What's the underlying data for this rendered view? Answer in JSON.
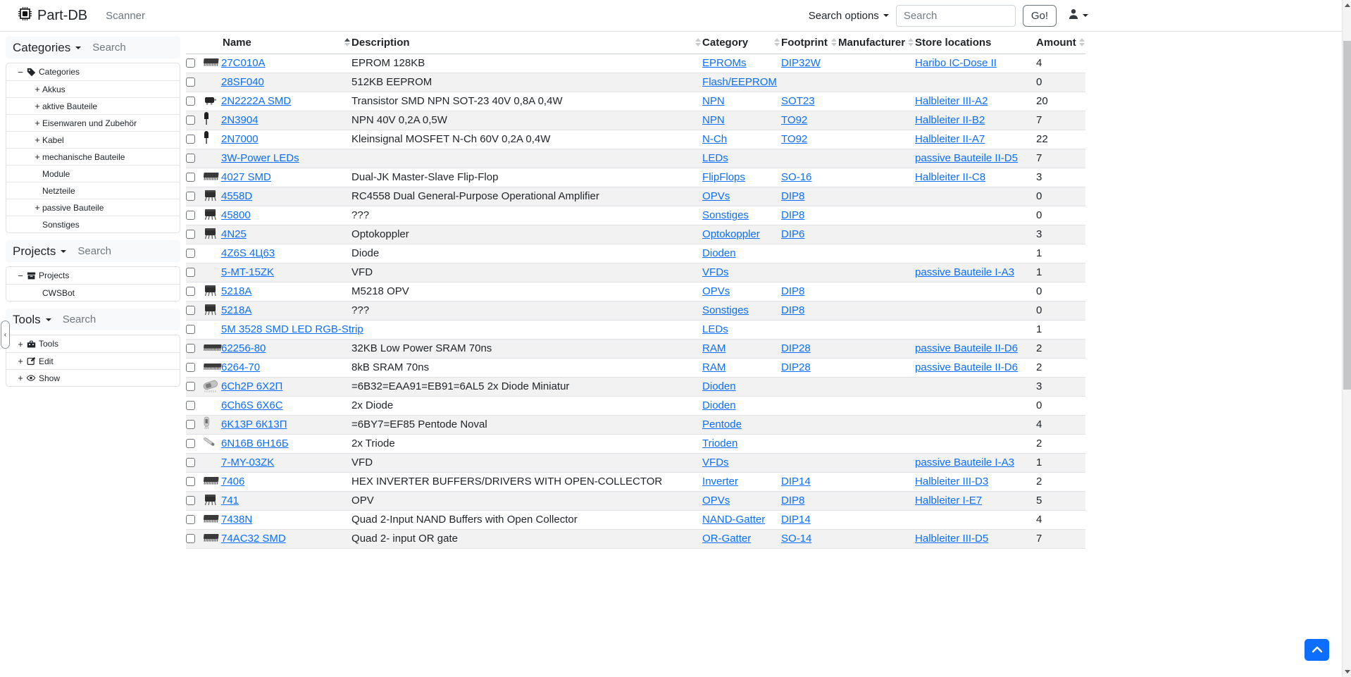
{
  "navbar": {
    "brand": "Part-DB",
    "scanner_label": "Scanner",
    "search_options_label": "Search options",
    "search_placeholder": "Search",
    "go_label": "Go!"
  },
  "sidebar": {
    "sections": [
      {
        "id": "categories",
        "title": "Categories",
        "search_placeholder": "Search",
        "items": [
          {
            "label": "Categories",
            "expander": "−",
            "icon": "tag",
            "level": 0
          },
          {
            "label": "Akkus",
            "expander": "+",
            "icon": "",
            "level": 1
          },
          {
            "label": "aktive Bauteile",
            "expander": "+",
            "icon": "",
            "level": 1
          },
          {
            "label": "Eisenwaren und Zubehör",
            "expander": "+",
            "icon": "",
            "level": 1
          },
          {
            "label": "Kabel",
            "expander": "+",
            "icon": "",
            "level": 1
          },
          {
            "label": "mechanische Bauteile",
            "expander": "+",
            "icon": "",
            "level": 1
          },
          {
            "label": "Module",
            "expander": "",
            "icon": "",
            "level": 1
          },
          {
            "label": "Netzteile",
            "expander": "",
            "icon": "",
            "level": 1
          },
          {
            "label": "passive Bauteile",
            "expander": "+",
            "icon": "",
            "level": 1
          },
          {
            "label": "Sonstiges",
            "expander": "",
            "icon": "",
            "level": 1
          }
        ]
      },
      {
        "id": "projects",
        "title": "Projects",
        "search_placeholder": "Search",
        "items": [
          {
            "label": "Projects",
            "expander": "−",
            "icon": "inbox",
            "level": 0
          },
          {
            "label": "CWSBot",
            "expander": "",
            "icon": "",
            "level": 1
          }
        ]
      },
      {
        "id": "tools",
        "title": "Tools",
        "search_placeholder": "Search",
        "items": [
          {
            "label": "Tools",
            "expander": "+",
            "icon": "toolbox",
            "level": 0
          },
          {
            "label": "Edit",
            "expander": "+",
            "icon": "pencil",
            "level": 0
          },
          {
            "label": "Show",
            "expander": "+",
            "icon": "eye",
            "level": 0
          }
        ]
      }
    ]
  },
  "table": {
    "headers": {
      "name": "Name",
      "description": "Description",
      "category": "Category",
      "footprint": "Footprint",
      "manufacturer": "Manufacturer",
      "store_locations": "Store locations",
      "amount": "Amount"
    },
    "sorted_by": "name",
    "rows": [
      {
        "name": "27C010A",
        "description": "EPROM 128KB",
        "category": "EPROMs",
        "footprint": "DIP32W",
        "manufacturer": "",
        "store_location": "Haribo IC-Dose II",
        "amount": "4",
        "thumb": "dip"
      },
      {
        "name": "28SF040",
        "description": "512KB EEPROM",
        "category": "Flash/EEPROM",
        "footprint": "",
        "manufacturer": "",
        "store_location": "",
        "amount": "0",
        "thumb": ""
      },
      {
        "name": "2N2222A SMD",
        "description": "Transistor SMD NPN SOT-23 40V 0,8A 0,4W",
        "category": "NPN",
        "footprint": "SOT23",
        "manufacturer": "",
        "store_location": "Halbleiter III-A2",
        "amount": "20",
        "thumb": "sot23"
      },
      {
        "name": "2N3904",
        "description": "NPN 40V 0,2A 0,5W",
        "category": "NPN",
        "footprint": "TO92",
        "manufacturer": "",
        "store_location": "Halbleiter II-B2",
        "amount": "7",
        "thumb": "to92"
      },
      {
        "name": "2N7000",
        "description": "Kleinsignal MOSFET N-Ch 60V 0,2A 0,4W",
        "category": "N-Ch",
        "footprint": "TO92",
        "manufacturer": "",
        "store_location": "Halbleiter II-A7",
        "amount": "22",
        "thumb": "to92"
      },
      {
        "name": "3W-Power LEDs",
        "description": "",
        "category": "LEDs",
        "footprint": "",
        "manufacturer": "",
        "store_location": "passive Bauteile II-D5",
        "amount": "7",
        "thumb": ""
      },
      {
        "name": "4027 SMD",
        "description": "Dual-JK Master-Slave Flip-Flop",
        "category": "FlipFlops",
        "footprint": "SO-16",
        "manufacturer": "",
        "store_location": "Halbleiter II-C8",
        "amount": "3",
        "thumb": "dip"
      },
      {
        "name": "4558D",
        "description": "RC4558 Dual General-Purpose Operational Amplifier",
        "category": "OPVs",
        "footprint": "DIP8",
        "manufacturer": "",
        "store_location": "",
        "amount": "0",
        "thumb": "dip8"
      },
      {
        "name": "45800",
        "description": "???",
        "category": "Sonstiges",
        "footprint": "DIP8",
        "manufacturer": "",
        "store_location": "",
        "amount": "0",
        "thumb": "dip8"
      },
      {
        "name": "4N25",
        "description": "Optokoppler",
        "category": "Optokoppler",
        "footprint": "DIP6",
        "manufacturer": "",
        "store_location": "",
        "amount": "3",
        "thumb": "dip8"
      },
      {
        "name": "4Z6S 4Ц63",
        "description": "Diode",
        "category": "Dioden",
        "footprint": "",
        "manufacturer": "",
        "store_location": "",
        "amount": "1",
        "thumb": ""
      },
      {
        "name": "5-MT-15ZK",
        "description": "VFD",
        "category": "VFDs",
        "footprint": "",
        "manufacturer": "",
        "store_location": "passive Bauteile I-A3",
        "amount": "1",
        "thumb": ""
      },
      {
        "name": "5218A",
        "description": "M5218 OPV",
        "category": "OPVs",
        "footprint": "DIP8",
        "manufacturer": "",
        "store_location": "",
        "amount": "0",
        "thumb": "dip8"
      },
      {
        "name": "5218A",
        "description": "???",
        "category": "Sonstiges",
        "footprint": "DIP8",
        "manufacturer": "",
        "store_location": "",
        "amount": "0",
        "thumb": "dip8"
      },
      {
        "name": "5M 3528 SMD LED RGB-Strip",
        "description": "",
        "category": "LEDs",
        "footprint": "",
        "manufacturer": "",
        "store_location": "",
        "amount": "1",
        "thumb": ""
      },
      {
        "name": "62256-80",
        "description": "32KB Low Power SRAM 70ns",
        "category": "RAM",
        "footprint": "DIP28",
        "manufacturer": "",
        "store_location": "passive Bauteile II-D6",
        "amount": "2",
        "thumb": "dipLong"
      },
      {
        "name": "6264-70",
        "description": "8kB SRAM 70ns",
        "category": "RAM",
        "footprint": "DIP28",
        "manufacturer": "",
        "store_location": "passive Bauteile II-D6",
        "amount": "2",
        "thumb": "dipLong"
      },
      {
        "name": "6Ch2P 6Х2П",
        "description": "=6B32=EAA91=EB91=6AL5 2x Diode Miniatur",
        "category": "Dioden",
        "footprint": "",
        "manufacturer": "",
        "store_location": "",
        "amount": "3",
        "thumb": "tubeH"
      },
      {
        "name": "6Ch6S 6X6C",
        "description": "2x Diode",
        "category": "Dioden",
        "footprint": "",
        "manufacturer": "",
        "store_location": "",
        "amount": "0",
        "thumb": ""
      },
      {
        "name": "6K13P 6К13П",
        "description": "=6BY7=EF85 Pentode Noval",
        "category": "Pentode",
        "footprint": "",
        "manufacturer": "",
        "store_location": "",
        "amount": "4",
        "thumb": "tubeV"
      },
      {
        "name": "6N16B 6Н16Б",
        "description": "2x Triode",
        "category": "Trioden",
        "footprint": "",
        "manufacturer": "",
        "store_location": "",
        "amount": "2",
        "thumb": "tubeD"
      },
      {
        "name": "7-MY-03ZK",
        "description": "VFD",
        "category": "VFDs",
        "footprint": "",
        "manufacturer": "",
        "store_location": "passive Bauteile I-A3",
        "amount": "1",
        "thumb": ""
      },
      {
        "name": "7406",
        "description": "HEX INVERTER BUFFERS/DRIVERS WITH OPEN-COLLECTOR",
        "category": "Inverter",
        "footprint": "DIP14",
        "manufacturer": "",
        "store_location": "Halbleiter III-D3",
        "amount": "2",
        "thumb": "dip"
      },
      {
        "name": "741",
        "description": "OPV",
        "category": "OPVs",
        "footprint": "DIP8",
        "manufacturer": "",
        "store_location": "Halbleiter I-E7",
        "amount": "5",
        "thumb": "dip8"
      },
      {
        "name": "7438N",
        "description": "Quad 2-Input NAND Buffers with Open Collector",
        "category": "NAND-Gatter",
        "footprint": "DIP14",
        "manufacturer": "",
        "store_location": "",
        "amount": "4",
        "thumb": "dip"
      },
      {
        "name": "74AC32 SMD",
        "description": "Quad 2- input OR gate",
        "category": "OR-Gatter",
        "footprint": "SO-14",
        "manufacturer": "",
        "store_location": "Halbleiter III-D5",
        "amount": "7",
        "thumb": "dip"
      }
    ]
  },
  "colors": {
    "link": "#0d6efd",
    "accent": "#0d6efd",
    "stripe": "#f2f2f2",
    "border": "#dee2e6"
  }
}
